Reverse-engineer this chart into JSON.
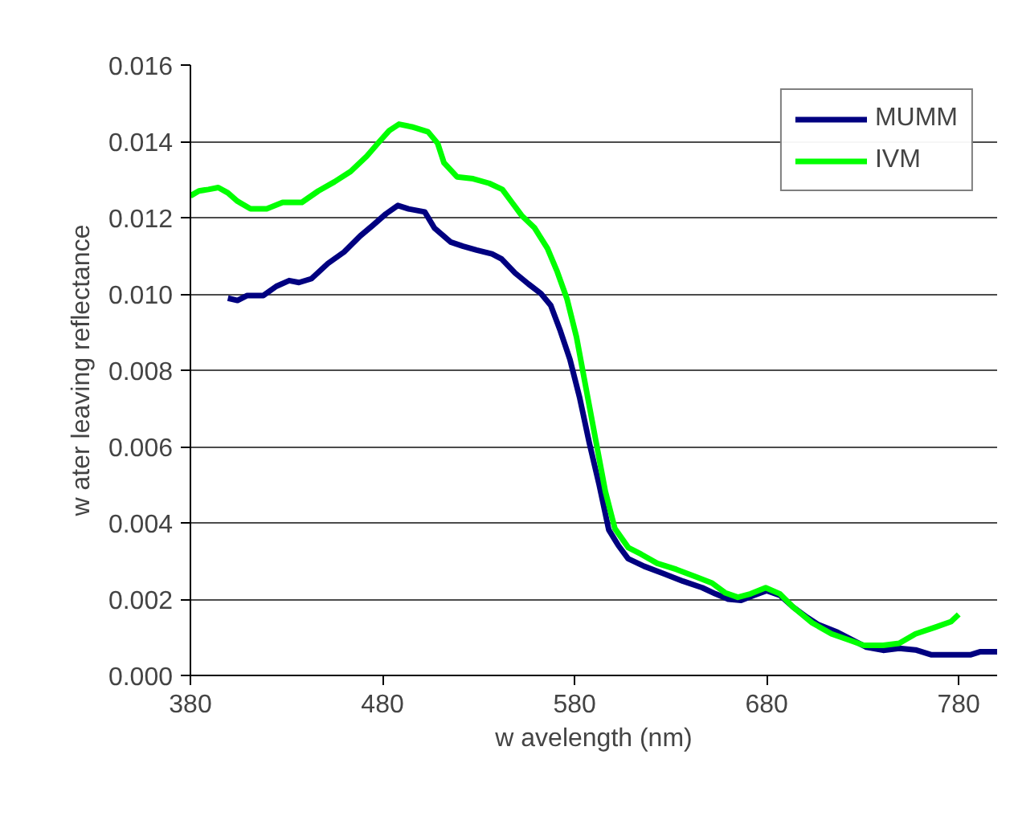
{
  "chart_data": {
    "type": "line",
    "xlabel": "w avelength (nm)",
    "ylabel": "w ater leaving reflectance",
    "xlim": [
      380,
      800
    ],
    "xticks": [
      380,
      480,
      580,
      680,
      780
    ],
    "ylim": [
      0,
      0.016
    ],
    "yticks": [
      {
        "value": 0,
        "label": "0.000"
      },
      {
        "value": 0.002,
        "label": "0.002"
      },
      {
        "value": 0.004,
        "label": "0.004"
      },
      {
        "value": 0.006,
        "label": "0.006"
      },
      {
        "value": 0.008,
        "label": "0.008"
      },
      {
        "value": 0.01,
        "label": "0.010"
      },
      {
        "value": 0.012,
        "label": "0.012"
      },
      {
        "value": 0.014,
        "label": "0.014"
      },
      {
        "value": 0.016,
        "label": "0.016"
      }
    ],
    "grid": "y",
    "legend": "top right",
    "marker": "none",
    "line_style": "solid",
    "series": [
      {
        "name": "MUMM",
        "color": "#000080",
        "x": [
          399.5,
          404.5,
          409.6,
          418,
          424.7,
          431.4,
          436.5,
          443,
          451.6,
          460,
          468.4,
          475,
          481.8,
          488,
          493.6,
          502,
          507,
          515.5,
          522,
          529,
          537,
          542,
          549,
          556,
          562.5,
          567.6,
          572.6,
          577.6,
          582.7,
          587.7,
          592.8,
          597.8,
          602.9,
          607.9,
          616.3,
          626.4,
          636.5,
          646.5,
          653.3,
          660,
          666.7,
          673.4,
          680,
          686.9,
          693.6,
          700.3,
          707,
          717,
          725.5,
          732,
          740.7,
          749,
          757.5,
          765.9,
          776,
          786,
          791,
          800
        ],
        "values": [
          0.00989,
          0.00983,
          0.00996,
          0.00996,
          0.0102,
          0.01035,
          0.0103,
          0.0104,
          0.0108,
          0.0111,
          0.01152,
          0.0118,
          0.0121,
          0.01232,
          0.01223,
          0.01215,
          0.01173,
          0.01136,
          0.01125,
          0.01115,
          0.01105,
          0.01092,
          0.01055,
          0.01026,
          0.01001,
          0.0097,
          0.00903,
          0.00828,
          0.00727,
          0.00609,
          0.005,
          0.00382,
          0.0034,
          0.00306,
          0.00286,
          0.00267,
          0.00247,
          0.0023,
          0.00214,
          0.002,
          0.00197,
          0.0021,
          0.00222,
          0.0021,
          0.0018,
          0.00155,
          0.00133,
          0.00113,
          0.00091,
          0.00074,
          0.00066,
          0.00071,
          0.00067,
          0.00054,
          0.00054,
          0.00054,
          0.00062,
          0.00062
        ]
      },
      {
        "name": "IVM",
        "color": "#00ff00",
        "x": [
          380,
          384.4,
          389.4,
          394.5,
          399.5,
          404.5,
          411.3,
          419.7,
          428,
          438,
          446.6,
          455,
          463.4,
          471.8,
          478.5,
          483.5,
          488.6,
          495.3,
          503.7,
          508.7,
          512,
          518.8,
          527.2,
          535.6,
          542.4,
          547.4,
          552.4,
          559.2,
          565.9,
          571,
          576,
          581,
          586,
          591,
          596,
          601,
          608,
          614.6,
          623,
          633,
          643,
          651.6,
          658.3,
          665,
          671.7,
          679.5,
          686.9,
          693.6,
          703.7,
          713.8,
          723.9,
          730.6,
          740.7,
          749,
          757.5,
          767.6,
          776,
          780
        ],
        "values": [
          0.01257,
          0.0127,
          0.01274,
          0.01279,
          0.01265,
          0.01243,
          0.01223,
          0.01223,
          0.0124,
          0.0124,
          0.0127,
          0.01294,
          0.01321,
          0.01361,
          0.014,
          0.01428,
          0.01445,
          0.01438,
          0.01425,
          0.01395,
          0.01344,
          0.01307,
          0.01302,
          0.0129,
          0.01274,
          0.0124,
          0.01206,
          0.01173,
          0.01119,
          0.01058,
          0.00988,
          0.00887,
          0.00752,
          0.00617,
          0.00483,
          0.00385,
          0.00335,
          0.00318,
          0.00294,
          0.00278,
          0.00259,
          0.00242,
          0.00217,
          0.00205,
          0.00214,
          0.0023,
          0.00214,
          0.0018,
          0.00138,
          0.00109,
          0.00091,
          0.00079,
          0.00079,
          0.00084,
          0.00109,
          0.00126,
          0.00141,
          0.0016
        ]
      }
    ]
  }
}
